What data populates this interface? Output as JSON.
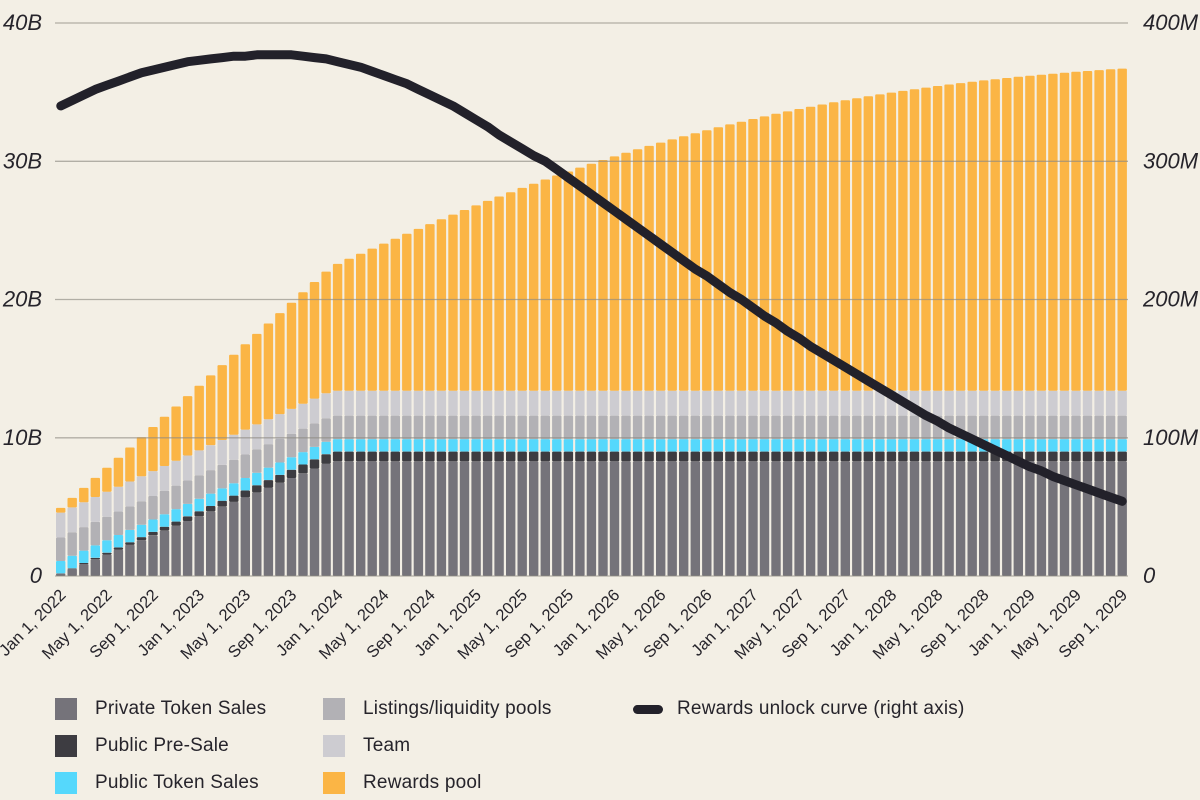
{
  "theme": {
    "background": "#f3efe5",
    "text_color": "#26242b",
    "gridline_color": "#8e8b83",
    "curve_color": "#22212a"
  },
  "chart_data": {
    "type": "combo-stacked-bar-line",
    "title": "",
    "x_axis": {
      "unit": "month",
      "start": "Jan 1, 2022",
      "end": "Sep 1, 2029",
      "months_total": 93,
      "tick_every_months": 4,
      "tick_labels": [
        "Jan 1, 2022",
        "May 1, 2022",
        "Sep 1, 2022",
        "Jan 1, 2023",
        "May 1, 2023",
        "Sep 1, 2023",
        "Jan 1, 2024",
        "May 1, 2024",
        "Sep 1, 2024",
        "Jan 1, 2025",
        "May 1, 2025",
        "Sep 1, 2025",
        "Jan 1, 2026",
        "May 1, 2026",
        "Sep 1, 2026",
        "Jan 1, 2027",
        "May 1, 2027",
        "Sep 1, 2027",
        "Jan 1, 2028",
        "May 1, 2028",
        "Sep 1, 2028",
        "Jan 1, 2029",
        "May 1, 2029",
        "Sep 1, 2029"
      ]
    },
    "left_axis": {
      "tick_labels": [
        "40B",
        "30B",
        "20B",
        "10B",
        "0"
      ],
      "tick_values_b": [
        40,
        30,
        20,
        10,
        0
      ],
      "range_b": [
        0,
        40
      ]
    },
    "right_axis": {
      "tick_labels": [
        "400M",
        "300M",
        "200M",
        "100M",
        "0"
      ],
      "tick_values_m": [
        400,
        300,
        200,
        100,
        0
      ],
      "range_m": [
        0,
        400
      ]
    },
    "bar_series": [
      {
        "name": "Private Token Sales",
        "color": "#75737a",
        "total_b": 8.3,
        "unlock_model": "linear-24-months"
      },
      {
        "name": "Public Pre-Sale",
        "color": "#3d3c41",
        "total_b": 0.7,
        "unlock_model": "linear-24-months"
      },
      {
        "name": "Public Token Sales",
        "color": "#55d8fc",
        "total_b": 0.9,
        "unlock_model": "full-at-tge"
      },
      {
        "name": "Listings/liquidity pools",
        "color": "#b2b1b5",
        "total_b": 1.7,
        "unlock_model": "full-at-tge"
      },
      {
        "name": "Team",
        "color": "#cdccd1",
        "total_b": 1.8,
        "unlock_model": "full-at-tge"
      },
      {
        "name": "Rewards pool",
        "color": "#fbb545",
        "total_b": 23.3,
        "unlock_model": "cumulative-of-curve"
      }
    ],
    "line_series": {
      "name": "Rewards unlock curve (right axis)",
      "color": "#22212a",
      "axis": "right",
      "unit": "tokens-per-month-millions",
      "values_m": [
        340,
        344,
        348,
        352,
        355,
        358,
        361,
        364,
        366,
        368,
        370,
        372,
        373,
        374,
        375,
        376,
        376,
        377,
        377,
        377,
        377,
        376,
        375,
        374,
        372,
        370,
        368,
        365,
        362,
        359,
        356,
        352,
        348,
        344,
        340,
        335,
        330,
        325,
        319,
        314,
        309,
        304,
        300,
        294,
        288,
        282,
        276,
        270,
        264,
        258,
        252,
        246,
        240,
        234,
        228,
        222,
        217,
        211,
        205,
        200,
        194,
        188,
        183,
        177,
        172,
        166,
        161,
        156,
        151,
        146,
        141,
        136,
        131,
        126,
        121,
        116,
        112,
        107,
        103,
        99,
        95,
        91,
        87,
        83,
        79,
        76,
        72,
        69,
        66,
        63,
        60,
        57,
        54
      ]
    }
  }
}
